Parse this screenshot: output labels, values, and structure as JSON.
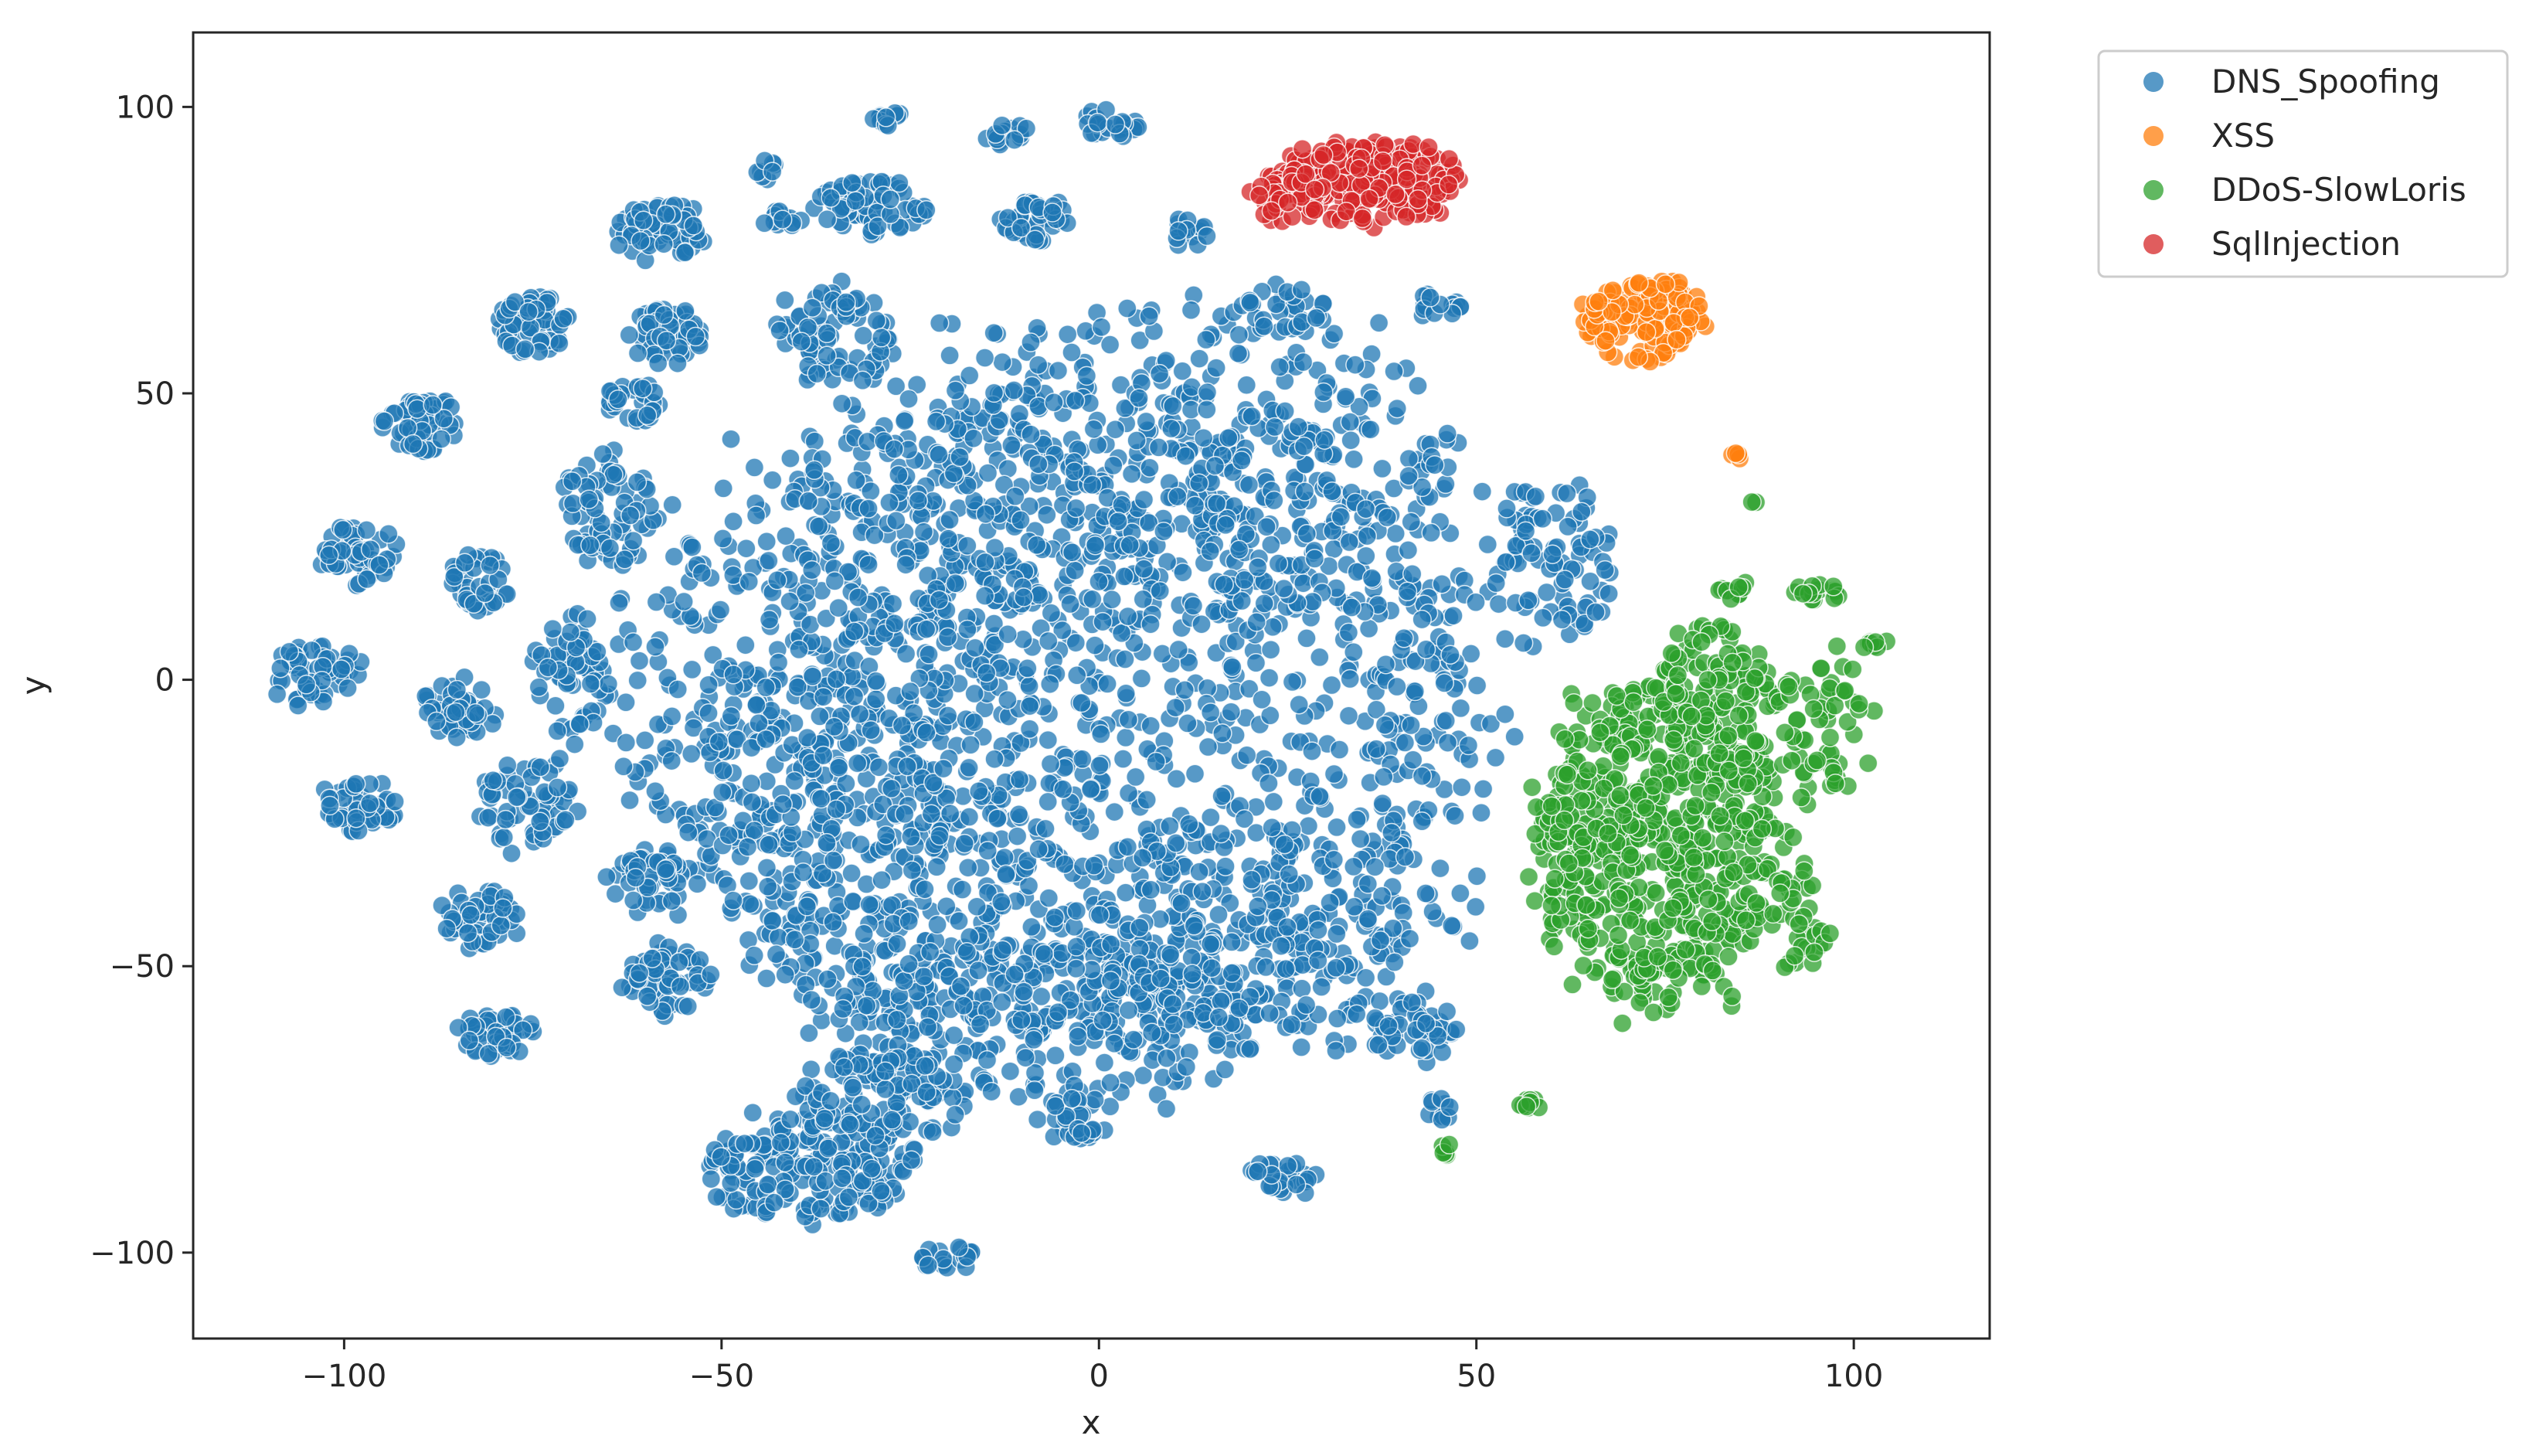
{
  "chart_data": {
    "type": "scatter",
    "title": "",
    "xlabel": "x",
    "ylabel": "y",
    "xlim": [
      -120,
      118
    ],
    "ylim": [
      -115,
      113
    ],
    "x_ticks": [
      -100,
      -50,
      0,
      50,
      100
    ],
    "y_ticks": [
      -100,
      -50,
      0,
      50,
      100
    ],
    "x_tick_labels": [
      "−100",
      "−50",
      "0",
      "50",
      "100"
    ],
    "y_tick_labels": [
      "−100",
      "−50",
      "0",
      "50",
      "100"
    ],
    "grid": false,
    "legend_position": "outside-top-right",
    "point_alpha": 0.75,
    "series": [
      {
        "name": "DNS_Spoofing",
        "color": "#1f77b4",
        "clusters": [
          {
            "center": [
              -5,
              -5
            ],
            "radii": [
              58,
              58
            ],
            "points": 1400
          },
          {
            "center": [
              8,
              35
            ],
            "radii": [
              38,
              30
            ],
            "points": 420
          },
          {
            "center": [
              -30,
              -20
            ],
            "radii": [
              22,
              40
            ],
            "points": 360
          },
          {
            "center": [
              20,
              -45
            ],
            "radii": [
              28,
              20
            ],
            "points": 260
          },
          {
            "center": [
              -8,
              -60
            ],
            "radii": [
              28,
              15
            ],
            "points": 220
          },
          {
            "center": [
              -38,
              -85
            ],
            "radii": [
              14,
              10
            ],
            "points": 200
          },
          {
            "center": [
              -28,
              -72
            ],
            "radii": [
              12,
              8
            ],
            "points": 100
          },
          {
            "center": [
              -58,
              78
            ],
            "radii": [
              6,
              5
            ],
            "points": 70
          },
          {
            "center": [
              -75,
              62
            ],
            "radii": [
              5,
              5
            ],
            "points": 60
          },
          {
            "center": [
              -90,
              45
            ],
            "radii": [
              5,
              5
            ],
            "points": 60
          },
          {
            "center": [
              -98,
              22
            ],
            "radii": [
              5,
              5
            ],
            "points": 50
          },
          {
            "center": [
              -104,
              1
            ],
            "radii": [
              6,
              5
            ],
            "points": 60
          },
          {
            "center": [
              -98,
              -22
            ],
            "radii": [
              5,
              5
            ],
            "points": 50
          },
          {
            "center": [
              -85,
              -5
            ],
            "radii": [
              5,
              5
            ],
            "points": 50
          },
          {
            "center": [
              -82,
              17
            ],
            "radii": [
              4,
              5
            ],
            "points": 40
          },
          {
            "center": [
              -76,
              -22
            ],
            "radii": [
              6,
              8
            ],
            "points": 60
          },
          {
            "center": [
              -82,
              -42
            ],
            "radii": [
              5,
              5
            ],
            "points": 50
          },
          {
            "center": [
              -80,
              -62
            ],
            "radii": [
              5,
              4
            ],
            "points": 50
          },
          {
            "center": [
              -57,
              -52
            ],
            "radii": [
              6,
              6
            ],
            "points": 60
          },
          {
            "center": [
              -57,
              60
            ],
            "radii": [
              5,
              5
            ],
            "points": 50
          },
          {
            "center": [
              -62,
              48
            ],
            "radii": [
              4,
              4
            ],
            "points": 30
          },
          {
            "center": [
              -30,
              83
            ],
            "radii": [
              7,
              5
            ],
            "points": 70
          },
          {
            "center": [
              -9,
              80
            ],
            "radii": [
              5,
              4
            ],
            "points": 40
          },
          {
            "center": [
              2,
              97
            ],
            "radii": [
              4,
              3
            ],
            "points": 25
          },
          {
            "center": [
              -12,
              95
            ],
            "radii": [
              3,
              2
            ],
            "points": 15
          },
          {
            "center": [
              -28,
              98
            ],
            "radii": [
              2,
              2
            ],
            "points": 10
          },
          {
            "center": [
              -44,
              89
            ],
            "radii": [
              2,
              2
            ],
            "points": 8
          },
          {
            "center": [
              -42,
              80
            ],
            "radii": [
              3,
              2
            ],
            "points": 12
          },
          {
            "center": [
              -20,
              -101
            ],
            "radii": [
              4,
              2
            ],
            "points": 20
          },
          {
            "center": [
              24,
              -87
            ],
            "radii": [
              5,
              3
            ],
            "points": 30
          },
          {
            "center": [
              -3,
              -77
            ],
            "radii": [
              5,
              4
            ],
            "points": 30
          },
          {
            "center": [
              -60,
              -35
            ],
            "radii": [
              5,
              5
            ],
            "points": 40
          },
          {
            "center": [
              -65,
              30
            ],
            "radii": [
              6,
              10
            ],
            "points": 70
          },
          {
            "center": [
              -70,
              0
            ],
            "radii": [
              5,
              12
            ],
            "points": 60
          },
          {
            "center": [
              -35,
              60
            ],
            "radii": [
              8,
              8
            ],
            "points": 80
          },
          {
            "center": [
              25,
              65
            ],
            "radii": [
              6,
              4
            ],
            "points": 30
          },
          {
            "center": [
              45,
              65
            ],
            "radii": [
              3,
              3
            ],
            "points": 15
          },
          {
            "center": [
              60,
              20
            ],
            "radii": [
              8,
              15
            ],
            "points": 90
          },
          {
            "center": [
              42,
              -62
            ],
            "radii": [
              6,
              6
            ],
            "points": 40
          },
          {
            "center": [
              45,
              -75
            ],
            "radii": [
              2,
              2
            ],
            "points": 10
          },
          {
            "center": [
              12,
              78
            ],
            "radii": [
              3,
              3
            ],
            "points": 15
          }
        ]
      },
      {
        "name": "XSS",
        "color": "#ff7f0e",
        "clusters": [
          {
            "center": [
              72,
              63
            ],
            "radii": [
              8,
              7
            ],
            "points": 140
          },
          {
            "center": [
              84,
              39
            ],
            "radii": [
              1,
              1
            ],
            "points": 4
          }
        ]
      },
      {
        "name": "DDoS-SlowLoris",
        "color": "#2ca02c",
        "clusters": [
          {
            "center": [
              74,
              -28
            ],
            "radii": [
              16,
              28
            ],
            "points": 650
          },
          {
            "center": [
              82,
              -5
            ],
            "radii": [
              8,
              15
            ],
            "points": 120
          },
          {
            "center": [
              96,
              -8
            ],
            "radii": [
              6,
              14
            ],
            "points": 60
          },
          {
            "center": [
              93,
              -42
            ],
            "radii": [
              4,
              10
            ],
            "points": 35
          },
          {
            "center": [
              95,
              15
            ],
            "radii": [
              3,
              2
            ],
            "points": 15
          },
          {
            "center": [
              84,
              16
            ],
            "radii": [
              2,
              2
            ],
            "points": 10
          },
          {
            "center": [
              57,
              -74
            ],
            "radii": [
              2,
              1
            ],
            "points": 10
          },
          {
            "center": [
              46,
              -82
            ],
            "radii": [
              1,
              1
            ],
            "points": 6
          },
          {
            "center": [
              103,
              6
            ],
            "radii": [
              2,
              1
            ],
            "points": 8
          },
          {
            "center": [
              87,
              31
            ],
            "radii": [
              0.5,
              0.5
            ],
            "points": 2
          }
        ]
      },
      {
        "name": "SqlInjection",
        "color": "#d62728",
        "clusters": [
          {
            "center": [
              36,
              87
            ],
            "radii": [
              12,
              7
            ],
            "points": 260
          },
          {
            "center": [
              25,
              84
            ],
            "radii": [
              5,
              5
            ],
            "points": 40
          }
        ]
      }
    ]
  }
}
